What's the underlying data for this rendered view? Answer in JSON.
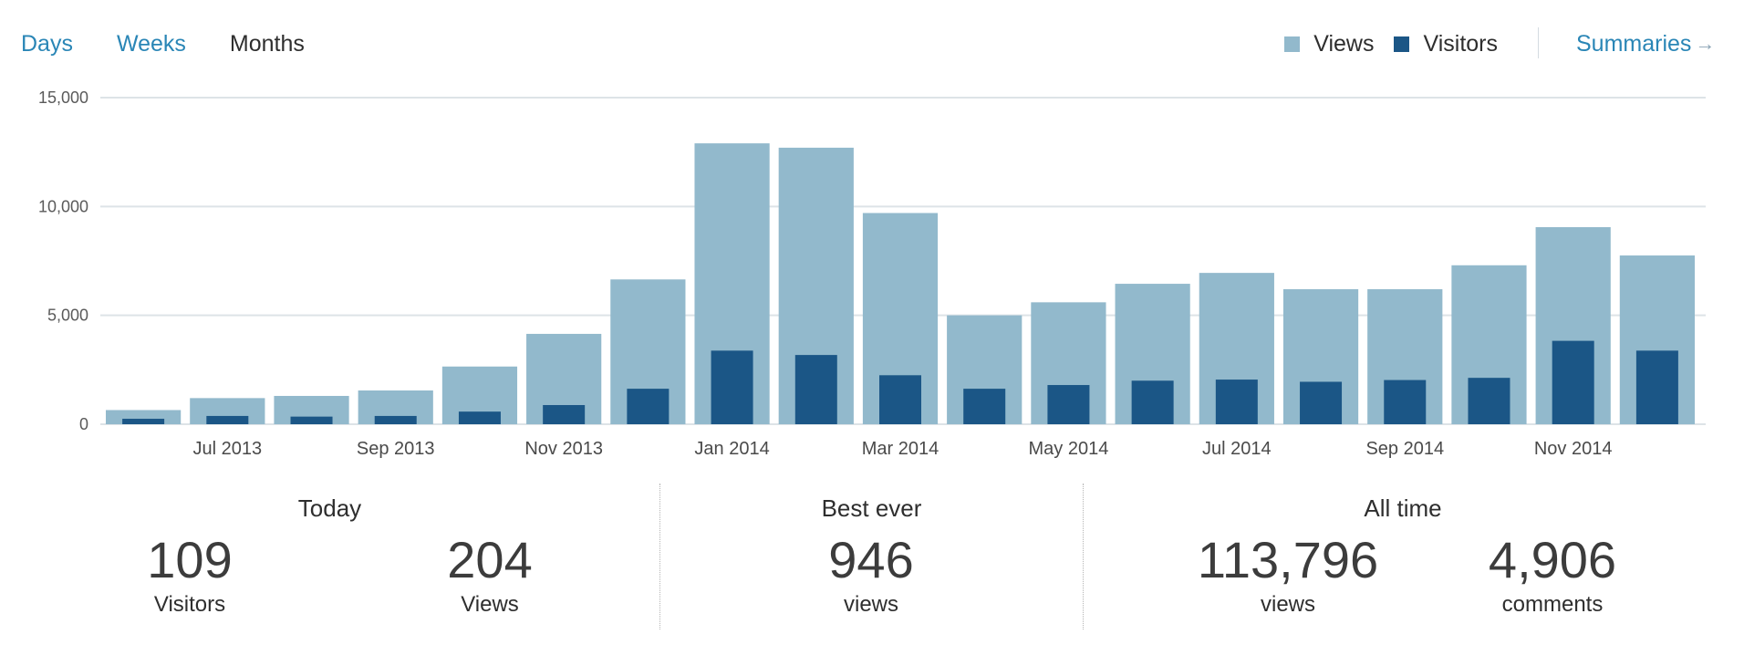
{
  "tabs": [
    {
      "label": "Days",
      "active": false
    },
    {
      "label": "Weeks",
      "active": false
    },
    {
      "label": "Months",
      "active": true
    }
  ],
  "legend": {
    "views_label": "Views",
    "visitors_label": "Visitors"
  },
  "summaries_link": {
    "label": "Summaries",
    "icon": "arrow-right-icon"
  },
  "colors": {
    "views": "#92b9cc",
    "visitors": "#1b5686",
    "link": "#2a86b6",
    "grid": "#dde3e7"
  },
  "chart_data": {
    "type": "bar",
    "categories": [
      "Jun 2013",
      "Jul 2013",
      "Aug 2013",
      "Sep 2013",
      "Oct 2013",
      "Nov 2013",
      "Dec 2013",
      "Jan 2014",
      "Feb 2014",
      "Mar 2014",
      "Apr 2014",
      "May 2014",
      "Jun 2014",
      "Jul 2014",
      "Aug 2014",
      "Sep 2014",
      "Oct 2014",
      "Nov 2014",
      "Dec 2014"
    ],
    "x_tick_labels": [
      "Jul 2013",
      "Sep 2013",
      "Nov 2013",
      "Jan 2014",
      "Mar 2014",
      "May 2014",
      "Jul 2014",
      "Sep 2014",
      "Nov 2014"
    ],
    "series": [
      {
        "name": "Views",
        "values": [
          650,
          1200,
          1300,
          1550,
          2650,
          4150,
          6650,
          12900,
          12700,
          9700,
          5000,
          5600,
          6450,
          6950,
          6200,
          6200,
          7300,
          9050,
          7750
        ]
      },
      {
        "name": "Visitors",
        "values": [
          250,
          380,
          350,
          380,
          580,
          880,
          1630,
          3380,
          3180,
          2250,
          1630,
          1800,
          2000,
          2050,
          1950,
          2030,
          2130,
          3830,
          3380
        ]
      }
    ],
    "y_ticks": [
      "15,000",
      "10,000",
      "5,000",
      "0"
    ],
    "ylim": [
      0,
      15000
    ],
    "grid": true,
    "legend_position": "top-right"
  },
  "stats": {
    "today": {
      "title": "Today",
      "visitors_value": "109",
      "visitors_label": "Visitors",
      "views_value": "204",
      "views_label": "Views"
    },
    "best_ever": {
      "title": "Best ever",
      "value": "946",
      "label": "views"
    },
    "all_time": {
      "title": "All time",
      "views_value": "113,796",
      "views_label": "views",
      "comments_value": "4,906",
      "comments_label": "comments"
    }
  }
}
